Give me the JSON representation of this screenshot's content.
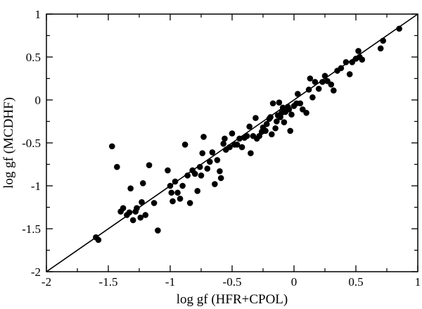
{
  "chart_data": {
    "type": "scatter",
    "title": "",
    "xlabel": "log gf (HFR+CPOL)",
    "ylabel": "log gf (MCDHF)",
    "xlim": [
      -2,
      1
    ],
    "ylim": [
      -2,
      1
    ],
    "xticks": [
      -2,
      -1.5,
      -1,
      -0.5,
      0,
      0.5,
      1
    ],
    "xtick_labels": [
      "-2",
      "-1.5",
      "-1",
      "-0.5",
      "0",
      "0.5",
      "1"
    ],
    "yticks": [
      -2,
      -1.5,
      -1,
      -0.5,
      0,
      0.5,
      1
    ],
    "ytick_labels": [
      "-2",
      "-1.5",
      "-1",
      "-0.5",
      "0",
      "0.5",
      "1"
    ],
    "grid": false,
    "reference_line": {
      "type": "identity",
      "x": [
        -2,
        1
      ],
      "y": [
        -2,
        1
      ]
    },
    "series": [
      {
        "points": [
          [
            -1.6,
            -1.6
          ],
          [
            -1.58,
            -1.63
          ],
          [
            -1.47,
            -0.54
          ],
          [
            -1.43,
            -0.78
          ],
          [
            -1.4,
            -1.3
          ],
          [
            -1.38,
            -1.26
          ],
          [
            -1.35,
            -1.34
          ],
          [
            -1.33,
            -1.31
          ],
          [
            -1.32,
            -1.03
          ],
          [
            -1.3,
            -1.4
          ],
          [
            -1.28,
            -1.3
          ],
          [
            -1.27,
            -1.26
          ],
          [
            -1.24,
            -1.37
          ],
          [
            -1.23,
            -1.19
          ],
          [
            -1.22,
            -0.97
          ],
          [
            -1.2,
            -1.34
          ],
          [
            -1.17,
            -0.76
          ],
          [
            -1.13,
            -1.2
          ],
          [
            -1.1,
            -1.52
          ],
          [
            -1.02,
            -0.82
          ],
          [
            -1.0,
            -1.0
          ],
          [
            -0.99,
            -1.08
          ],
          [
            -0.98,
            -1.18
          ],
          [
            -0.96,
            -0.95
          ],
          [
            -0.94,
            -1.08
          ],
          [
            -0.92,
            -1.15
          ],
          [
            -0.9,
            -1.0
          ],
          [
            -0.88,
            -0.52
          ],
          [
            -0.86,
            -0.88
          ],
          [
            -0.84,
            -1.2
          ],
          [
            -0.82,
            -0.82
          ],
          [
            -0.8,
            -0.86
          ],
          [
            -0.78,
            -1.06
          ],
          [
            -0.76,
            -0.78
          ],
          [
            -0.75,
            -0.88
          ],
          [
            -0.74,
            -0.62
          ],
          [
            -0.73,
            -0.43
          ],
          [
            -0.7,
            -0.8
          ],
          [
            -0.68,
            -0.72
          ],
          [
            -0.66,
            -0.61
          ],
          [
            -0.64,
            -0.98
          ],
          [
            -0.62,
            -0.7
          ],
          [
            -0.6,
            -0.83
          ],
          [
            -0.59,
            -0.91
          ],
          [
            -0.57,
            -0.51
          ],
          [
            -0.56,
            -0.45
          ],
          [
            -0.55,
            -0.58
          ],
          [
            -0.52,
            -0.55
          ],
          [
            -0.5,
            -0.39
          ],
          [
            -0.48,
            -0.52
          ],
          [
            -0.46,
            -0.52
          ],
          [
            -0.44,
            -0.45
          ],
          [
            -0.42,
            -0.55
          ],
          [
            -0.4,
            -0.44
          ],
          [
            -0.38,
            -0.42
          ],
          [
            -0.36,
            -0.31
          ],
          [
            -0.35,
            -0.62
          ],
          [
            -0.33,
            -0.42
          ],
          [
            -0.31,
            -0.21
          ],
          [
            -0.3,
            -0.45
          ],
          [
            -0.28,
            -0.42
          ],
          [
            -0.26,
            -0.37
          ],
          [
            -0.25,
            -0.32
          ],
          [
            -0.23,
            -0.36
          ],
          [
            -0.22,
            -0.28
          ],
          [
            -0.2,
            -0.22
          ],
          [
            -0.19,
            -0.2
          ],
          [
            -0.18,
            -0.4
          ],
          [
            -0.17,
            -0.04
          ],
          [
            -0.15,
            -0.33
          ],
          [
            -0.14,
            -0.25
          ],
          [
            -0.13,
            -0.18
          ],
          [
            -0.12,
            -0.03
          ],
          [
            -0.11,
            -0.2
          ],
          [
            -0.1,
            -0.15
          ],
          [
            -0.09,
            -0.09
          ],
          [
            -0.08,
            -0.26
          ],
          [
            -0.07,
            -0.14
          ],
          [
            -0.05,
            -0.08
          ],
          [
            -0.04,
            -0.11
          ],
          [
            -0.03,
            -0.36
          ],
          [
            -0.02,
            -0.17
          ],
          [
            0.0,
            -0.07
          ],
          [
            0.02,
            -0.04
          ],
          [
            0.03,
            0.07
          ],
          [
            0.05,
            -0.04
          ],
          [
            0.07,
            -0.11
          ],
          [
            0.1,
            -0.15
          ],
          [
            0.12,
            0.12
          ],
          [
            0.13,
            0.25
          ],
          [
            0.15,
            0.03
          ],
          [
            0.17,
            0.21
          ],
          [
            0.2,
            0.13
          ],
          [
            0.23,
            0.21
          ],
          [
            0.25,
            0.28
          ],
          [
            0.27,
            0.22
          ],
          [
            0.3,
            0.18
          ],
          [
            0.32,
            0.11
          ],
          [
            0.35,
            0.34
          ],
          [
            0.38,
            0.37
          ],
          [
            0.42,
            0.44
          ],
          [
            0.45,
            0.3
          ],
          [
            0.47,
            0.44
          ],
          [
            0.5,
            0.48
          ],
          [
            0.52,
            0.57
          ],
          [
            0.53,
            0.5
          ],
          [
            0.55,
            0.47
          ],
          [
            0.7,
            0.6
          ],
          [
            0.72,
            0.69
          ],
          [
            0.85,
            0.83
          ]
        ]
      }
    ]
  }
}
